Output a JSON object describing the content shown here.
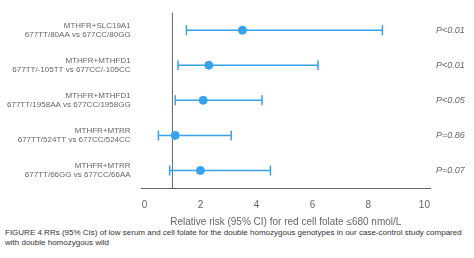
{
  "chart_data": {
    "type": "forest",
    "categories": [
      "MTHFR+SLC19A1",
      "MTHFR+MTHFD1",
      "MTHFR+MTHFD1",
      "MTHFR+MTRR",
      "MTHFR+MTRR"
    ],
    "sublabels": [
      "677TT/80AA vs 677CC/80GG",
      "677TT/-105TT vs 677CC/-105CC",
      "677TT/1958AA vs 677CC/1958GG",
      "677TT/524TT vs 677CC/524CC",
      "677TT/66GG vs 677CC/66AA"
    ],
    "values": [
      3.5,
      2.3,
      2.1,
      1.1,
      2.0
    ],
    "ci_low": [
      1.5,
      1.2,
      1.1,
      0.5,
      0.9
    ],
    "ci_high": [
      8.5,
      6.2,
      4.2,
      3.1,
      4.5
    ],
    "p_values": [
      "P<0.01",
      "P<0.01",
      "P<0.05",
      "P=0.86",
      "P=0.07"
    ],
    "xlabel": "Relative risk (95% CI) for red cell folate ≤680 nmol/L",
    "xlim": [
      -0.1,
      10.2
    ],
    "xticks": [
      0,
      2,
      4,
      6,
      8,
      10
    ],
    "reference_line": 1.0,
    "caption": "FIGURE 4   RRs (95% CIs) of low serum and cell folate for the double homozygous genotypes in our case-control study compared with double homozygous wild",
    "grid": false
  }
}
